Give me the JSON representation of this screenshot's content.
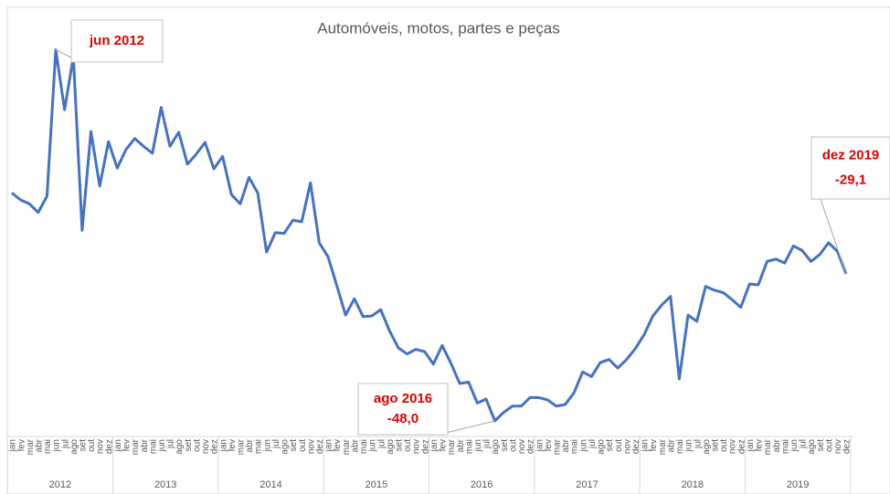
{
  "chart_data": {
    "type": "line",
    "title": "Automóveis, motos, partes e peças",
    "categories": [
      "jan",
      "fev",
      "mar",
      "abr",
      "mai",
      "jun",
      "jul",
      "ago",
      "set",
      "out",
      "nov",
      "dez",
      "jan",
      "fev",
      "mar",
      "abr",
      "mai",
      "jun",
      "jul",
      "ago",
      "set",
      "out",
      "nov",
      "dez",
      "jan",
      "fev",
      "mar",
      "abr",
      "mai",
      "jun",
      "jul",
      "ago",
      "set",
      "out",
      "nov",
      "dez",
      "jan",
      "fev",
      "mar",
      "abr",
      "mai",
      "jun",
      "jul",
      "ago",
      "set",
      "out",
      "nov",
      "dez",
      "jan",
      "fev",
      "mar",
      "abr",
      "mai",
      "jun",
      "jul",
      "ago",
      "set",
      "out",
      "nov",
      "dez",
      "jan",
      "fev",
      "mar",
      "abr",
      "mai",
      "jun",
      "jul",
      "ago",
      "set",
      "out",
      "nov",
      "dez",
      "jan",
      "fev",
      "mar",
      "abr",
      "mai",
      "jun",
      "jul",
      "ago",
      "set",
      "out",
      "nov",
      "dez",
      "jan",
      "fev",
      "mar",
      "abr",
      "mai",
      "jun",
      "jul",
      "ago",
      "set",
      "out",
      "nov",
      "dez"
    ],
    "year_groups": [
      "2012",
      "2013",
      "2014",
      "2015",
      "2016",
      "2017",
      "2018",
      "2019"
    ],
    "color": "#4472c4",
    "values": [
      -18.7,
      -19.6,
      -20.1,
      -21.2,
      -19.1,
      -0.3,
      -8.0,
      -1.2,
      -23.5,
      -10.8,
      -17.8,
      -12.1,
      -15.5,
      -13.1,
      -11.7,
      -12.7,
      -13.6,
      -7.7,
      -12.7,
      -10.9,
      -15.0,
      -13.7,
      -12.2,
      -15.6,
      -14.0,
      -18.9,
      -20.1,
      -16.7,
      -18.7,
      -26.3,
      -23.8,
      -23.9,
      -22.2,
      -22.4,
      -17.4,
      -25.1,
      -26.9,
      -30.6,
      -34.4,
      -32.3,
      -34.6,
      -34.5,
      -33.7,
      -36.4,
      -38.6,
      -39.4,
      -38.8,
      -39.1,
      -40.7,
      -38.3,
      -40.6,
      -43.2,
      -43.0,
      -45.7,
      -45.2,
      -48.0,
      -46.9,
      -46.1,
      -46.1,
      -45.0,
      -45.0,
      -45.3,
      -46.1,
      -45.9,
      -44.4,
      -41.7,
      -42.3,
      -40.5,
      -40.1,
      -41.2,
      -40.1,
      -38.7,
      -36.9,
      -34.5,
      -33.1,
      -32.0,
      -42.6,
      -34.4,
      -35.2,
      -30.7,
      -31.2,
      -31.5,
      -32.4,
      -33.4,
      -30.4,
      -30.5,
      -27.5,
      -27.2,
      -27.7,
      -25.5,
      -26.1,
      -27.5,
      -26.6,
      -25.1,
      -26.2,
      -29.1
    ],
    "point_labels": [
      null,
      null,
      null,
      null,
      null,
      "jun 2012",
      null,
      null,
      null,
      null,
      null,
      null,
      null,
      null,
      null,
      null,
      null,
      null,
      null,
      null,
      null,
      null,
      null,
      null,
      null,
      null,
      null,
      null,
      null,
      null,
      null,
      null,
      null,
      null,
      null,
      null,
      null,
      null,
      null,
      null,
      null,
      null,
      null,
      null,
      null,
      null,
      null,
      null,
      null,
      null,
      null,
      null,
      null,
      null,
      null,
      "ago 2016",
      null,
      null,
      null,
      null,
      null,
      null,
      null,
      null,
      null,
      null,
      null,
      null,
      null,
      null,
      null,
      null,
      null,
      null,
      null,
      null,
      null,
      null,
      null,
      null,
      null,
      null,
      null,
      null,
      null,
      null,
      null,
      null,
      null,
      null,
      null,
      null,
      null,
      null,
      null,
      "dez 2019"
    ],
    "value_labels": [
      null,
      null,
      null,
      null,
      null,
      null,
      null,
      null,
      null,
      null,
      null,
      null,
      null,
      null,
      null,
      null,
      null,
      null,
      null,
      null,
      null,
      null,
      null,
      null,
      null,
      null,
      null,
      null,
      null,
      null,
      null,
      null,
      null,
      null,
      null,
      null,
      null,
      null,
      null,
      null,
      null,
      null,
      null,
      null,
      null,
      null,
      null,
      null,
      null,
      null,
      null,
      null,
      null,
      null,
      null,
      "-48,0",
      null,
      null,
      null,
      null,
      null,
      null,
      null,
      null,
      null,
      null,
      null,
      null,
      null,
      null,
      null,
      null,
      null,
      null,
      null,
      null,
      null,
      null,
      null,
      null,
      null,
      null,
      null,
      null,
      null,
      null,
      null,
      null,
      null,
      null,
      null,
      null,
      null,
      null,
      null,
      "-29,1"
    ],
    "ylim": [
      -50,
      1
    ]
  }
}
